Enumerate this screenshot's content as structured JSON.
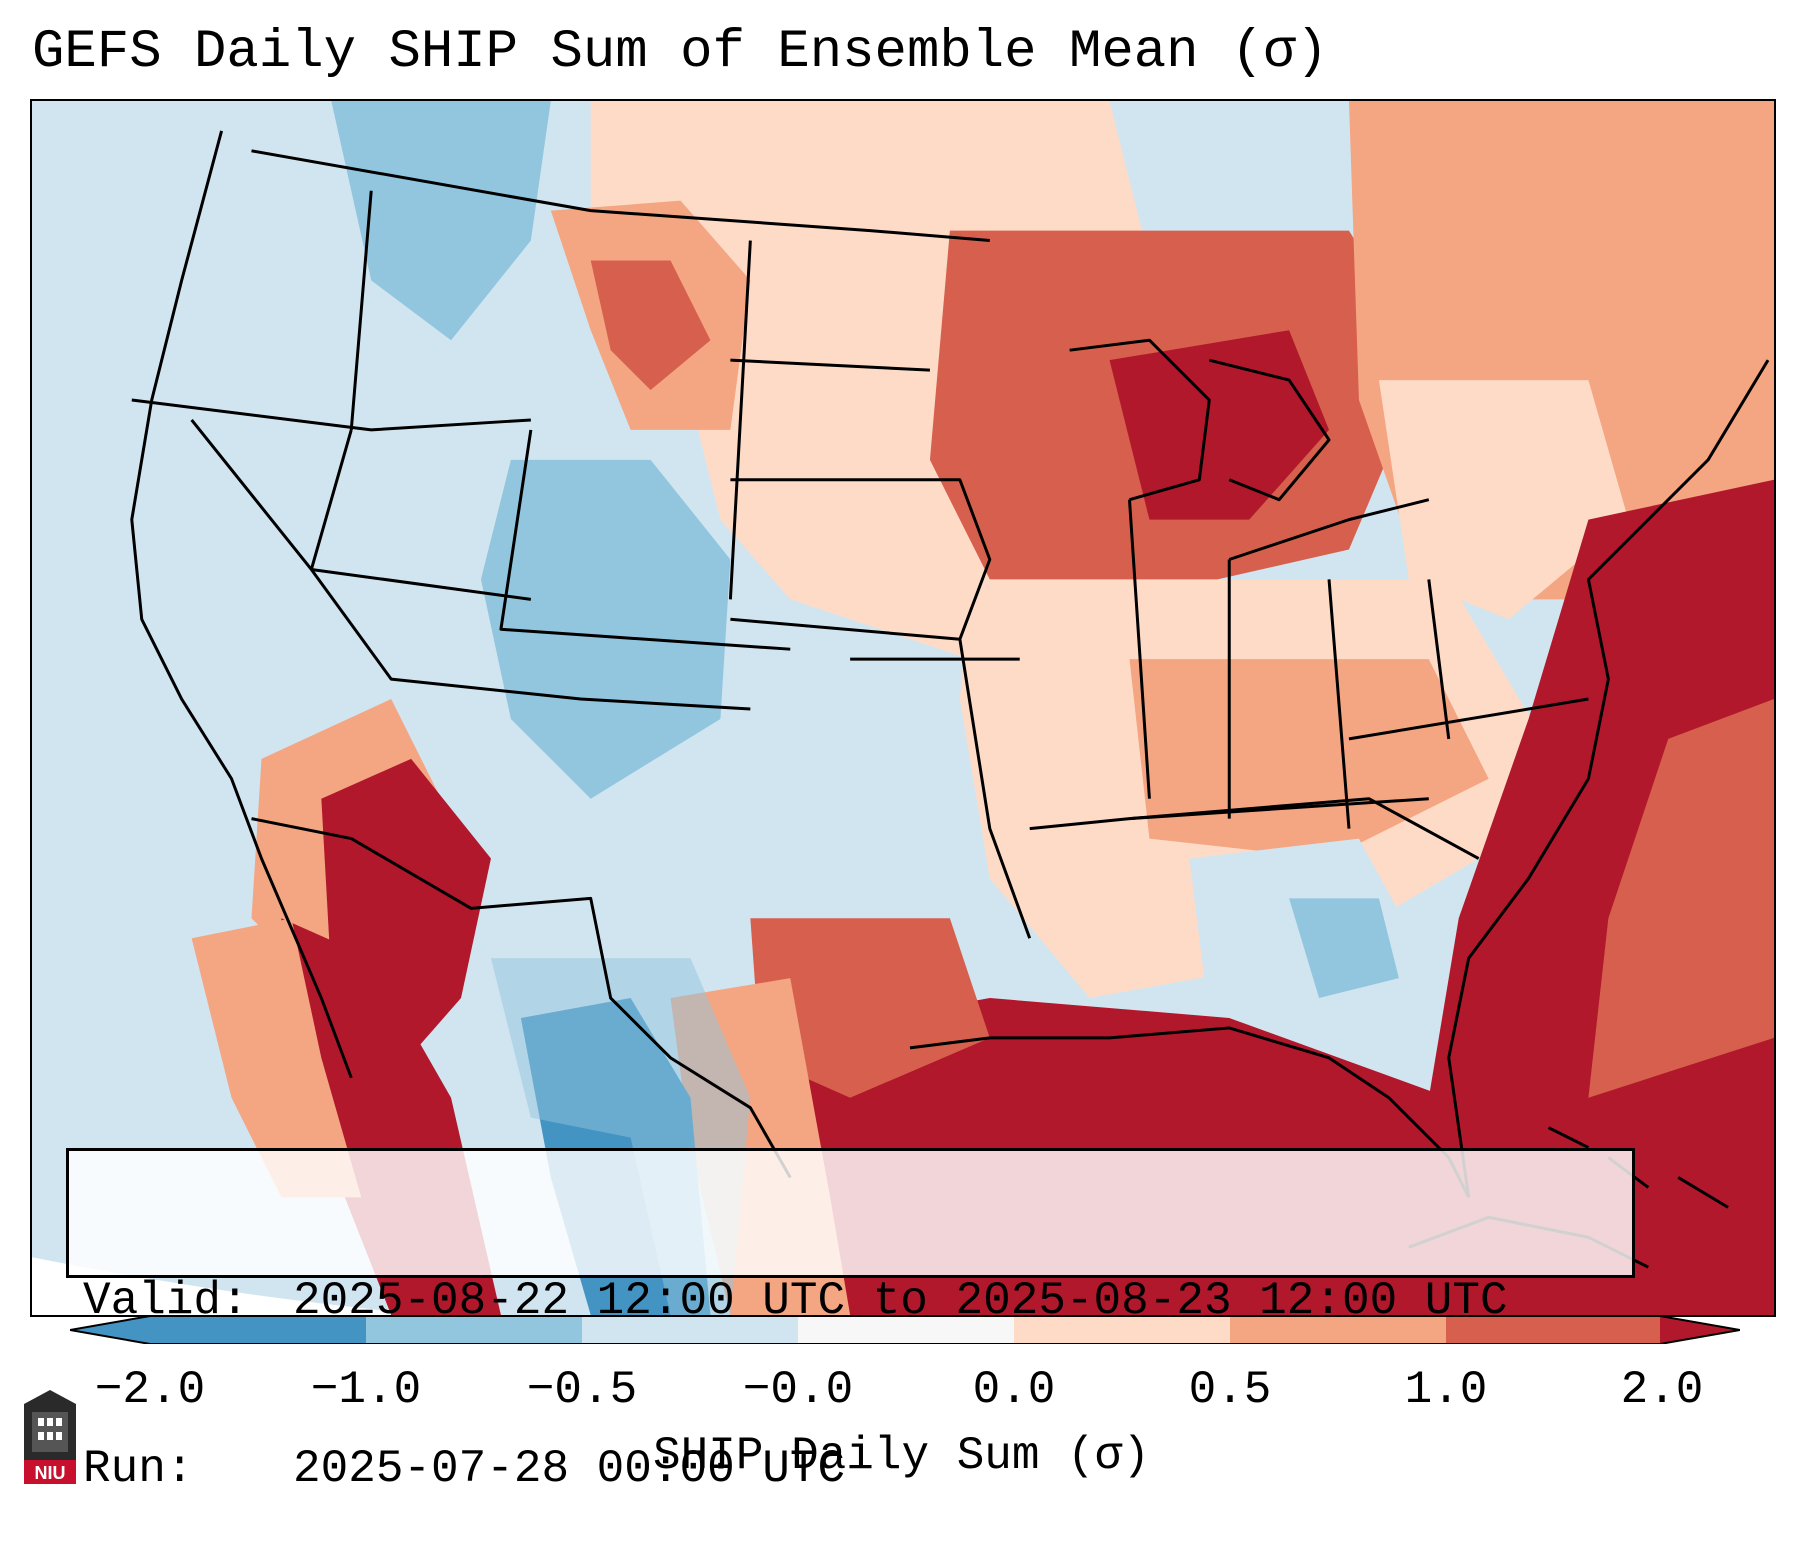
{
  "title": "GEFS Daily SHIP Sum of Ensemble Mean (σ)",
  "info": {
    "valid_label": "Valid:",
    "valid_value": "2025-08-22 12:00 UTC to 2025-08-23 12:00 UTC",
    "run_label": "Run:",
    "run_value": "2025-07-28 00:00 UTC"
  },
  "colorbar": {
    "title": "SHIP Daily Sum (σ)",
    "ticks": [
      "−2.0",
      "−1.0",
      "−0.5",
      "−0.0",
      "0.0",
      "0.5",
      "1.0",
      "2.0"
    ],
    "colors": [
      "#4393c3",
      "#92c5de",
      "#d1e5f0",
      "#f7f7f7",
      "#fddbc7",
      "#f4a582",
      "#d6604d",
      "#b2182b"
    ]
  },
  "logo": {
    "text": "NIU"
  },
  "map": {
    "region": "Contiguous United States",
    "ocean_color": "#d1e5f0"
  }
}
